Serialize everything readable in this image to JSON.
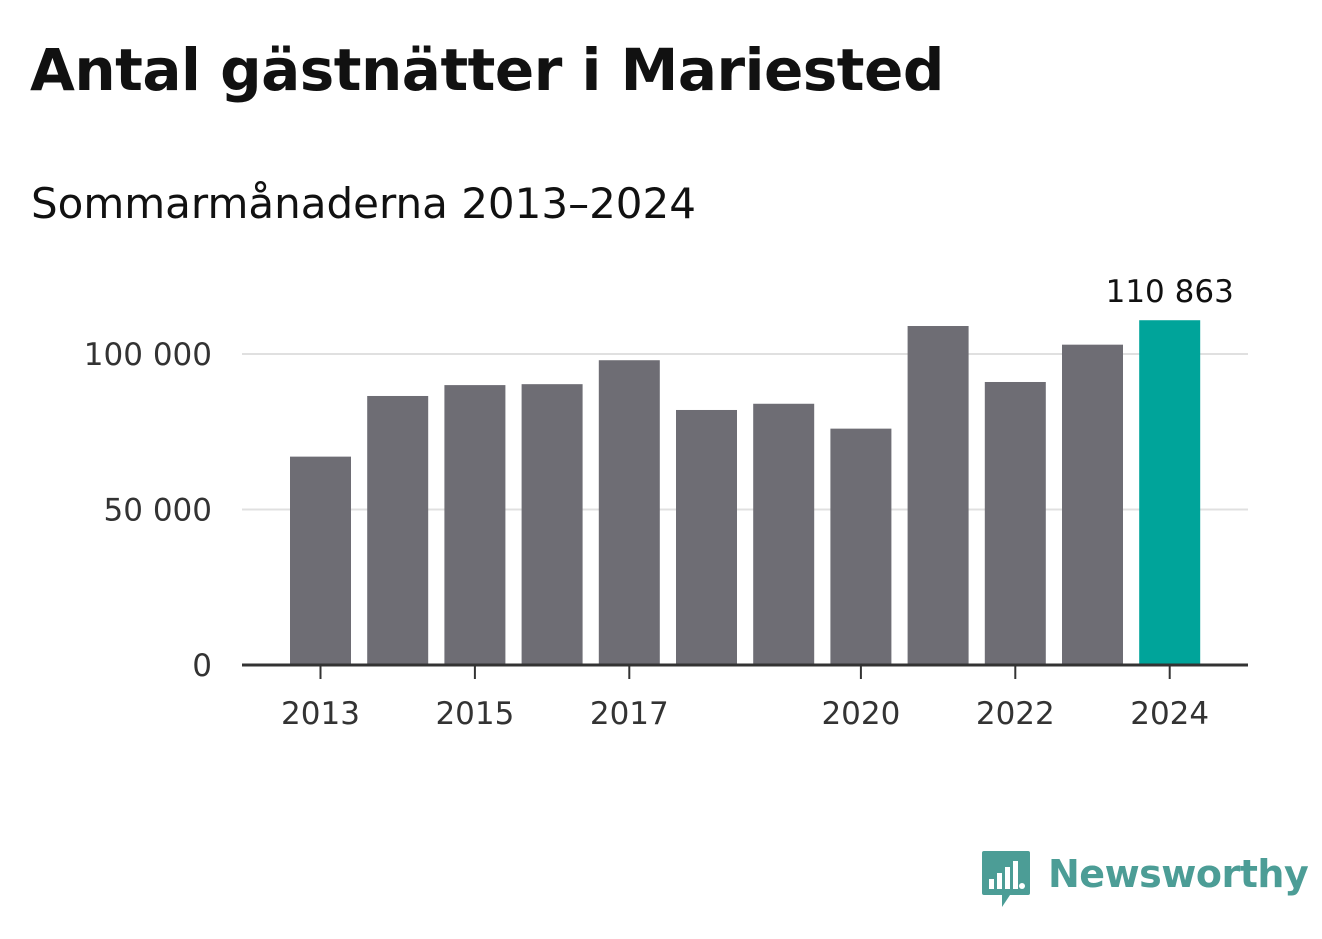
{
  "title": "Antal gästnätter i Mariested",
  "subtitle": "Sommarmånaderna 2013–2024",
  "brand": {
    "name": "Newsworthy",
    "color": "#4c9d96",
    "icon": "newsworthy-logo-icon"
  },
  "colors": {
    "bar": "#6e6d74",
    "highlight": "#00a49a",
    "grid": "#e0e0e0",
    "axis": "#333333"
  },
  "chart_data": {
    "type": "bar",
    "title": "Antal gästnätter i Mariested",
    "subtitle": "Sommarmånaderna 2013–2024",
    "xlabel": "",
    "ylabel": "",
    "categories": [
      "2013",
      "2014",
      "2015",
      "2016",
      "2017",
      "2018",
      "2019",
      "2020",
      "2021",
      "2022",
      "2023",
      "2024"
    ],
    "values": [
      67000,
      86500,
      90000,
      90300,
      98000,
      82000,
      84000,
      76000,
      109000,
      91000,
      103000,
      110863
    ],
    "highlight": "2024",
    "x_tick_labels": [
      "2013",
      "2015",
      "2017",
      "2020",
      "2022",
      "2024"
    ],
    "y_ticks": [
      0,
      50000,
      100000
    ],
    "y_tick_labels": [
      "0",
      "50 000",
      "100 000"
    ],
    "ylim": [
      0,
      112000
    ],
    "data_labels": [
      {
        "category": "2024",
        "text": "110 863"
      }
    ],
    "grid": true
  }
}
